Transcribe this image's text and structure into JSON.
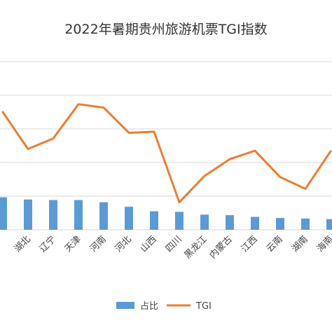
{
  "chart_data": {
    "type": "bar",
    "title": "2022年暑期贵州旅游机票TGI指数",
    "categories": [
      "",
      "湖北",
      "辽宁",
      "天津",
      "河南",
      "河北",
      "山西",
      "四川",
      "黑龙江",
      "内蒙古",
      "江西",
      "云南",
      "湖南",
      "海南"
    ],
    "series": [
      {
        "name": "占比",
        "kind": "bar",
        "color": "#5b9bd5",
        "values": [
          5.8,
          5.4,
          5.3,
          5.3,
          4.9,
          4.1,
          3.3,
          3.2,
          2.7,
          2.6,
          2.3,
          2.1,
          2.0,
          1.9
        ]
      },
      {
        "name": "TGI",
        "kind": "line",
        "color": "#ed7d31",
        "values": [
          21.0,
          14.4,
          16.3,
          22.4,
          21.8,
          17.3,
          17.5,
          4.9,
          9.6,
          12.6,
          14.1,
          9.4,
          7.3,
          14.0
        ]
      }
    ],
    "grid": true,
    "legend": "bottom",
    "ylim": [
      0,
      30
    ]
  }
}
